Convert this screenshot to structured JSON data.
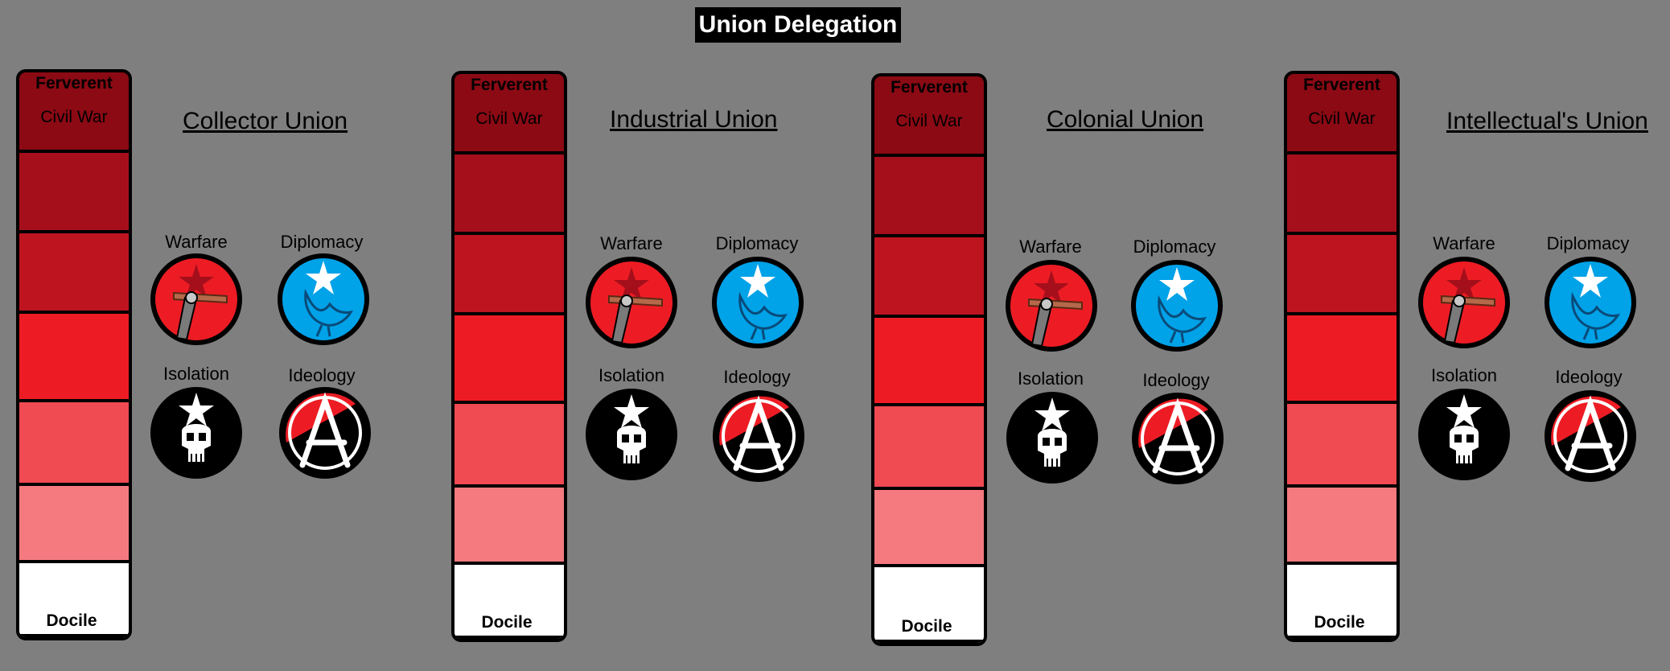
{
  "title": "Union Delegation",
  "meter": {
    "top_label": "Ferverent",
    "second_label": "Civil War",
    "bottom_label": "Docile",
    "segment_colors": [
      "#8b0a14",
      "#a50f1b",
      "#bd1420",
      "#ed1c24",
      "#f04a52",
      "#f47a80",
      "#ffffff"
    ]
  },
  "categories": {
    "warfare": "Warfare",
    "diplomacy": "Diplomacy",
    "isolation": "Isolation",
    "ideology": "Ideology"
  },
  "colors": {
    "background": "#7f7f7f",
    "warfare_icon": "#ed1c24",
    "diplomacy_icon": "#00a2e8",
    "isolation_icon": "#000000",
    "ideology_red": "#ed1c24"
  },
  "icons": [
    "rifle-star-icon",
    "dove-star-icon",
    "skull-star-icon",
    "anarchy-icon"
  ],
  "unions": [
    {
      "name": "Collector Union"
    },
    {
      "name": "Industrial Union"
    },
    {
      "name": "Colonial Union"
    },
    {
      "name": "Intellectual's Union"
    }
  ]
}
